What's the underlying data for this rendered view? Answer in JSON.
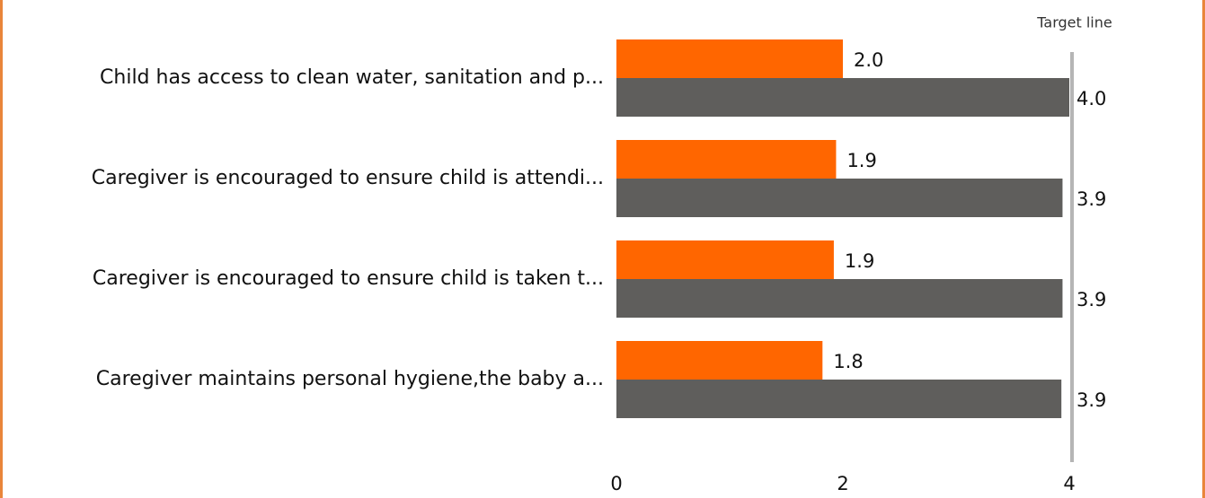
{
  "chart_data": {
    "type": "bar",
    "orientation": "horizontal",
    "categories": [
      "Child has access to clean water, sanitation and p...",
      "Caregiver is encouraged to ensure child is attendi...",
      "Caregiver is encouraged to ensure child is taken t...",
      "Caregiver maintains personal hygiene,the baby a..."
    ],
    "series": [
      {
        "color": "#ff6600",
        "values": [
          2.0,
          1.94,
          1.92,
          1.82
        ],
        "value_labels": [
          "2.0",
          "1.9",
          "1.9",
          "1.8"
        ]
      },
      {
        "color": "#5f5e5c",
        "values": [
          4.0,
          3.94,
          3.94,
          3.93
        ],
        "value_labels": [
          "4.0",
          "3.9",
          "3.9",
          "3.9"
        ]
      }
    ],
    "xlim": [
      0,
      4
    ],
    "xticks": [
      0,
      2,
      4
    ],
    "target": {
      "value": 4,
      "label": "Target line",
      "color": "#b5b5b5"
    },
    "grid": false
  }
}
